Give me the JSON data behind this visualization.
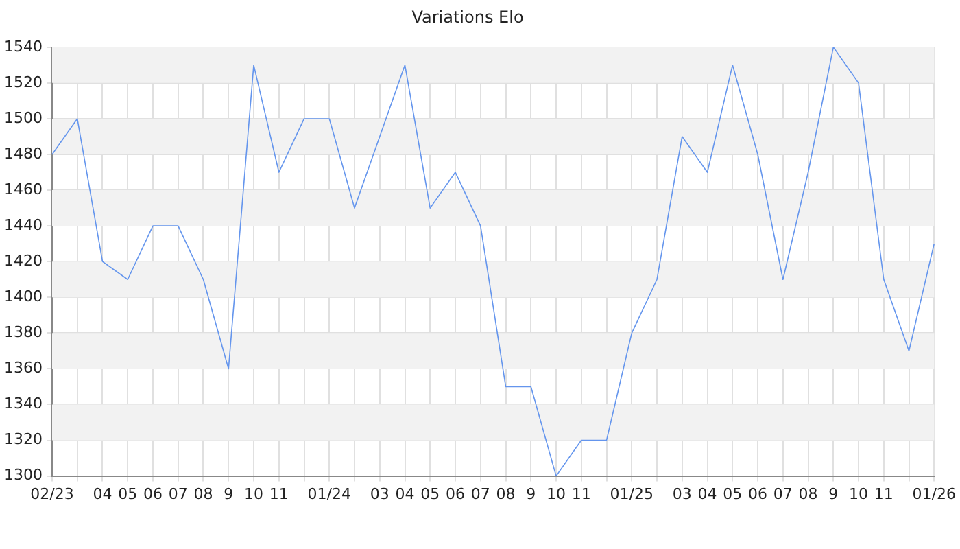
{
  "chart_data": {
    "type": "line",
    "title": "Variations Elo",
    "categories": [
      "02/23",
      null,
      "04",
      "05",
      "06",
      "07",
      "08",
      "9",
      "10",
      "11",
      null,
      "01/24",
      null,
      "03",
      "04",
      "05",
      "06",
      "07",
      "08",
      "9",
      "10",
      "11",
      null,
      "01/25",
      null,
      "03",
      "04",
      "05",
      "06",
      "07",
      "08",
      "9",
      "10",
      "11",
      null,
      "01/26"
    ],
    "series": [
      {
        "color": "#6495ed",
        "values": [
          1480,
          1500,
          1420,
          1410,
          1440,
          1440,
          1410,
          1360,
          1530,
          1470,
          1500,
          1500,
          1450,
          1490,
          1530,
          1450,
          1470,
          1440,
          1350,
          1350,
          1300,
          1320,
          1320,
          1380,
          1410,
          1490,
          1470,
          1530,
          1480,
          1410,
          1470,
          1540,
          1520,
          1410,
          1370,
          1430
        ]
      }
    ],
    "ylim": [
      1300,
      1540
    ],
    "yticks": [
      1300,
      1320,
      1340,
      1360,
      1380,
      1400,
      1420,
      1440,
      1460,
      1480,
      1500,
      1520,
      1540
    ],
    "grid": true,
    "legend": false,
    "marker": "none",
    "line_style": "solid"
  }
}
